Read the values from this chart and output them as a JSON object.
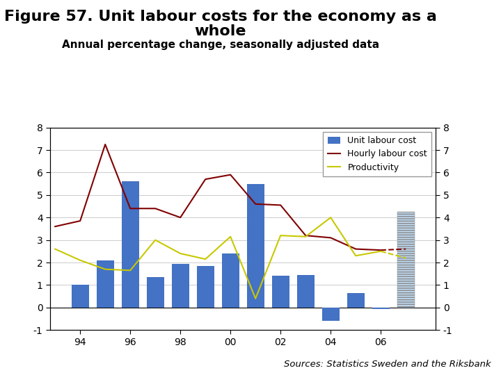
{
  "title_line1": "Figure 57. Unit labour costs for the economy as a",
  "title_line2": "whole",
  "subtitle": "Annual percentage change, seasonally adjusted data",
  "source": "Sources: Statistics Sweden and the Riksbank",
  "bar_years": [
    1994,
    1995,
    1996,
    1997,
    1998,
    1999,
    2000,
    2001,
    2002,
    2003,
    2004,
    2005,
    2006
  ],
  "bar_values": [
    1.0,
    2.1,
    5.6,
    1.35,
    1.95,
    1.85,
    2.4,
    5.5,
    1.4,
    1.45,
    -0.6,
    0.65,
    -0.07
  ],
  "bar_forecast_year": 2007,
  "bar_forecast_value": 4.25,
  "hourly_years": [
    1993,
    1994,
    1995,
    1996,
    1997,
    1998,
    1999,
    2000,
    2001,
    2002,
    2003,
    2004,
    2005,
    2006
  ],
  "hourly_values": [
    3.6,
    3.85,
    7.25,
    4.4,
    4.4,
    4.0,
    5.7,
    5.9,
    4.6,
    4.55,
    3.2,
    3.1,
    2.6,
    2.55
  ],
  "hourly_forecast_years": [
    2006,
    2007
  ],
  "hourly_forecast_values": [
    2.55,
    2.6
  ],
  "productivity_years": [
    1993,
    1994,
    1995,
    1996,
    1997,
    1998,
    1999,
    2000,
    2001,
    2002,
    2003,
    2004,
    2005,
    2006
  ],
  "productivity_values": [
    2.6,
    2.1,
    1.7,
    1.65,
    3.0,
    2.4,
    2.15,
    3.15,
    0.4,
    3.2,
    3.15,
    4.0,
    2.3,
    2.5
  ],
  "productivity_forecast_years": [
    2006,
    2007
  ],
  "productivity_forecast_values": [
    2.5,
    2.2
  ],
  "bar_color": "#4472C4",
  "bar_forecast_color": "#BDD7EE",
  "hourly_color": "#800000",
  "productivity_color": "#C8C800",
  "background_color": "#FFFFFF",
  "ylim": [
    -1,
    8
  ],
  "yticks": [
    -1,
    0,
    1,
    2,
    3,
    4,
    5,
    6,
    7,
    8
  ],
  "title_fontsize": 16,
  "subtitle_fontsize": 11,
  "footer_bar_color": "#1F3864",
  "legend_fontsize": 9
}
